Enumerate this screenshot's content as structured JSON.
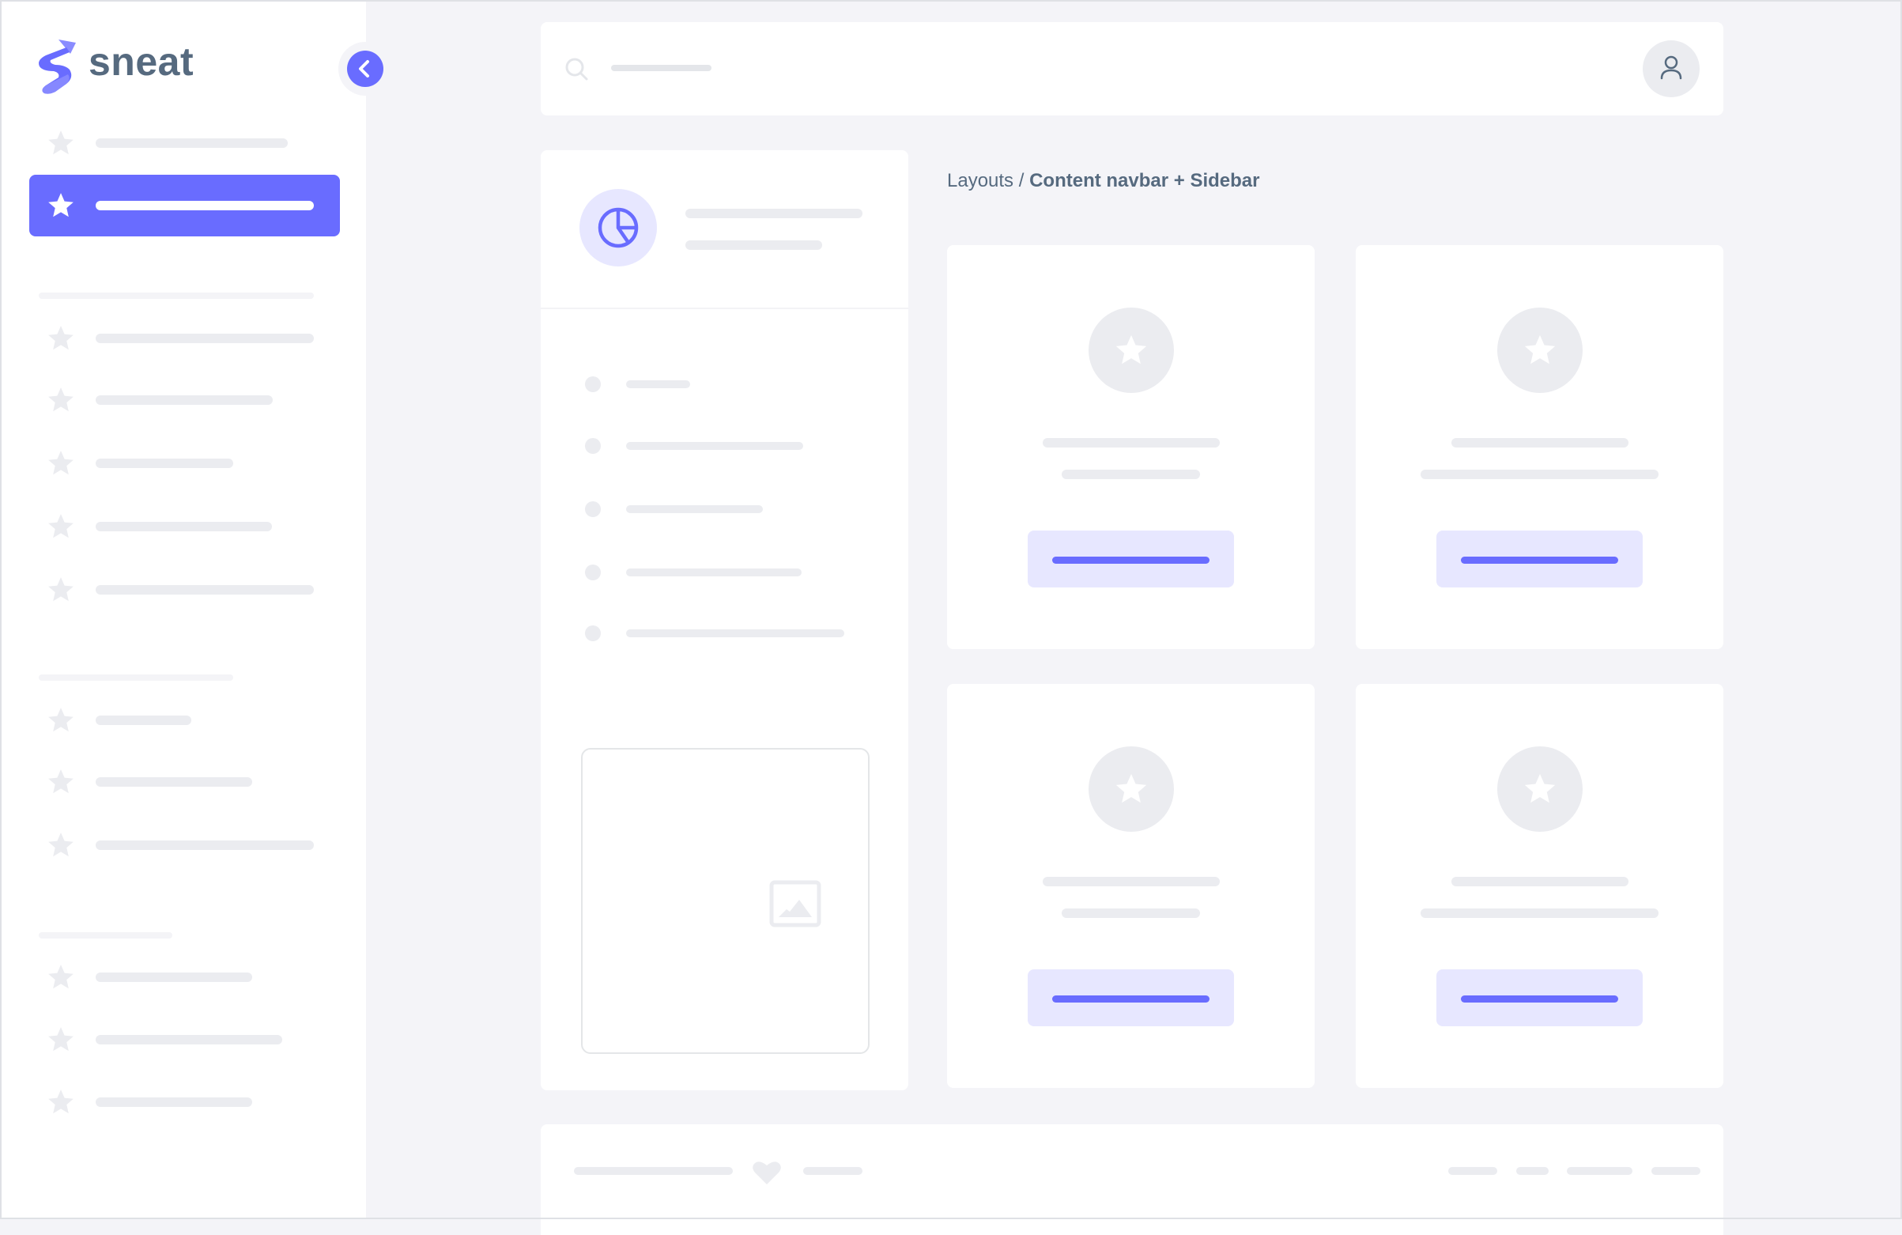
{
  "brand": {
    "name": "sneat",
    "primary_color": "#696cff",
    "text_color": "#566a7f"
  },
  "sidebar": {
    "collapse_icon": "chevron-left-icon",
    "item_icon": "star-icon",
    "active_index": 1
  },
  "navbar": {
    "search_icon": "search-icon",
    "avatar_icon": "user-icon"
  },
  "breadcrumb": {
    "parent": "Layouts",
    "separator": " / ",
    "current": "Content navbar + Sidebar"
  },
  "content_panel": {
    "header_icon": "pie-chart-icon",
    "image_icon": "image-icon"
  },
  "footer": {
    "icon": "heart-icon"
  }
}
